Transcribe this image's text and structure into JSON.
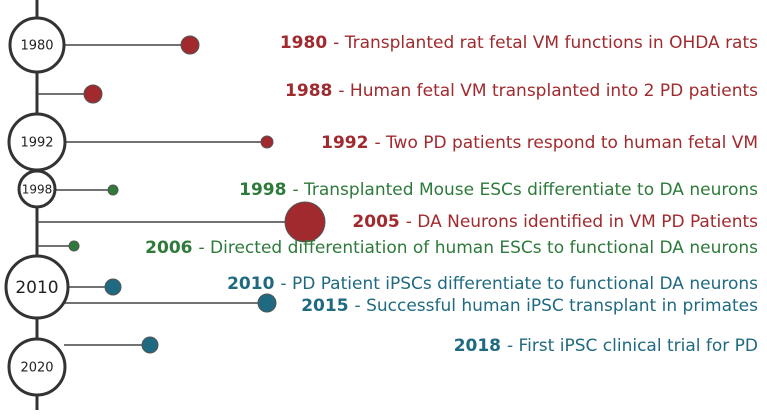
{
  "axis_labels": [
    "1980",
    "1992",
    "1998",
    "2010",
    "2020"
  ],
  "events": [
    {
      "year": "1980",
      "text": "- Transplanted rat fetal VM functions in OHDA rats",
      "color": "#a02a2e"
    },
    {
      "year": "1988",
      "text": "- Human fetal VM transplanted into 2 PD patients",
      "color": "#a02a2e"
    },
    {
      "year": "1992",
      "text": "- Two PD patients respond to human fetal VM",
      "color": "#a02a2e"
    },
    {
      "year": "1998",
      "text": "- Transplanted Mouse ESCs differentiate to DA neurons",
      "color": "#2d7a3a"
    },
    {
      "year": "2005",
      "text": "- DA Neurons identified in VM PD Patients",
      "color": "#a02a2e"
    },
    {
      "year": "2006",
      "text": "- Directed differentiation of human ESCs to functional DA neurons",
      "color": "#2d7a3a"
    },
    {
      "year": "2010",
      "text": "- PD Patient iPSCs differentiate to functional DA neurons",
      "color": "#1f6a80"
    },
    {
      "year": "2015",
      "text": "- Successful human iPSC transplant in primates",
      "color": "#1f6a80"
    },
    {
      "year": "2018",
      "text": "- First iPSC clinical trial for PD",
      "color": "#1f6a80"
    }
  ]
}
